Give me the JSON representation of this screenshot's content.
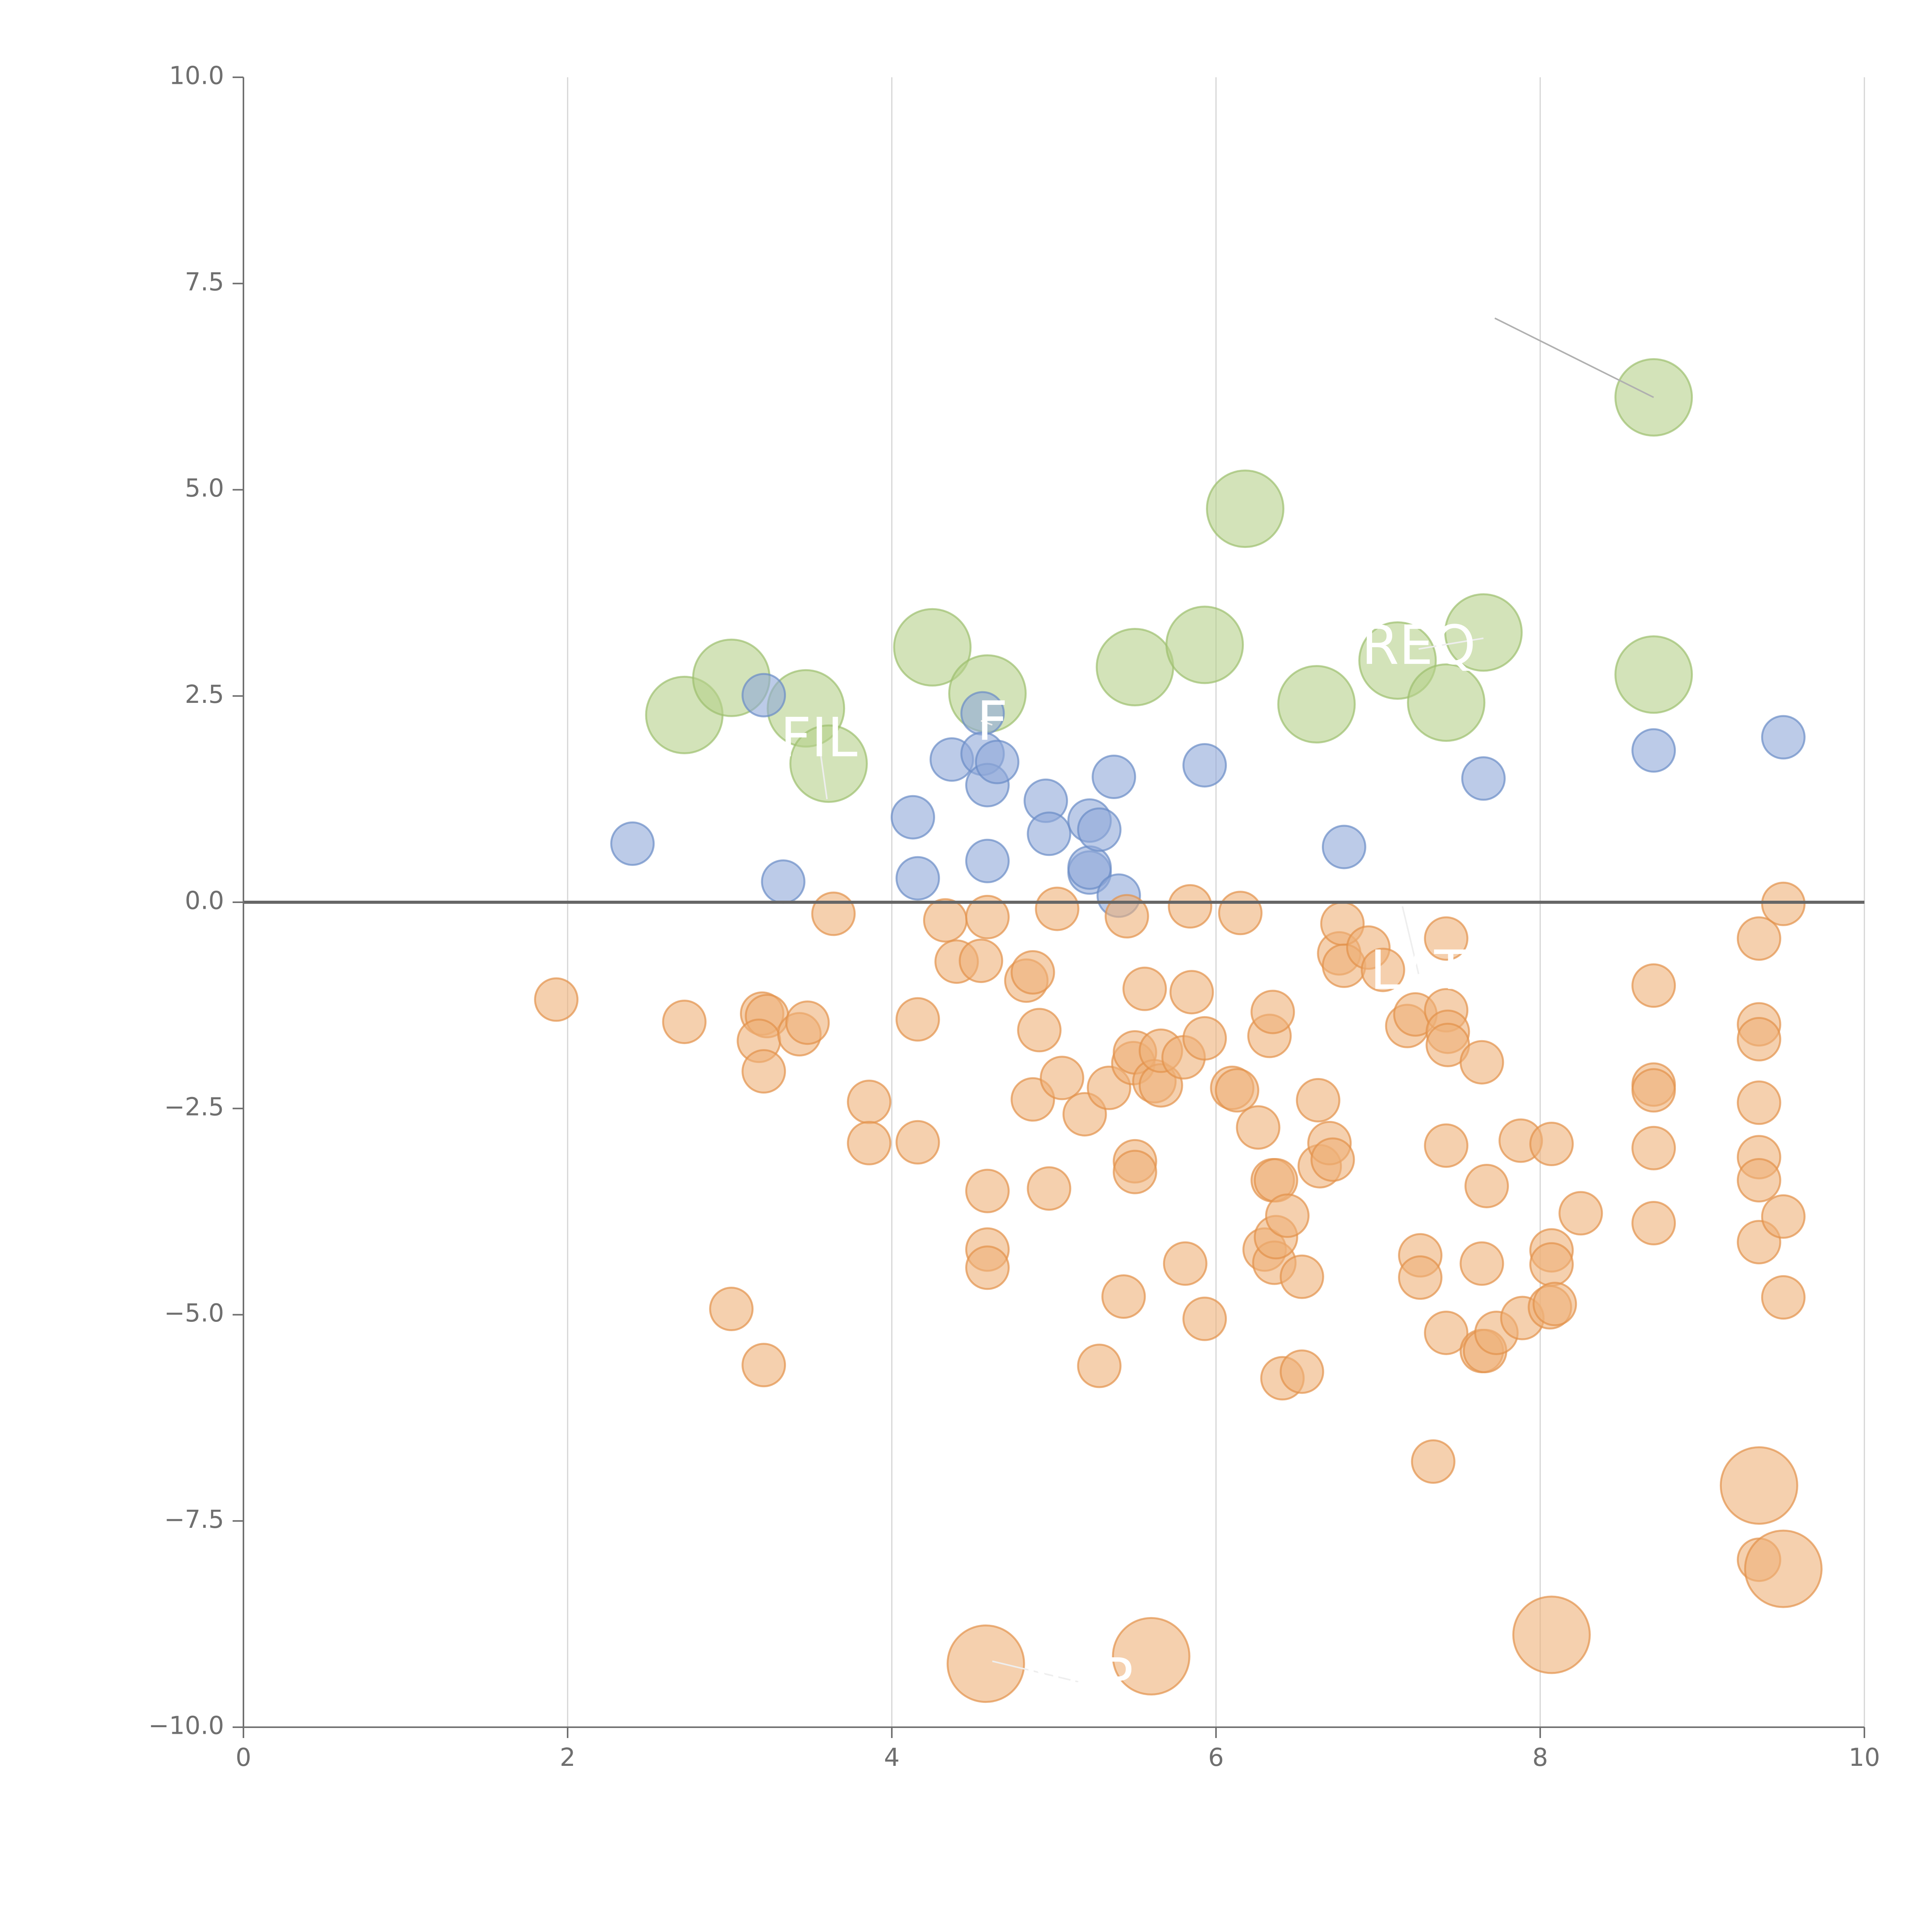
{
  "chart_data": {
    "type": "scatter",
    "title": "",
    "xlabel": "",
    "ylabel": "",
    "xlim": [
      0,
      10
    ],
    "ylim": [
      -10,
      10
    ],
    "x_ticks": [
      0,
      2,
      4,
      6,
      8,
      10
    ],
    "x_tick_labels": [
      "0",
      "2",
      "4",
      "6",
      "8",
      "10"
    ],
    "y_ticks": [
      10,
      7.5,
      5,
      2.5,
      0,
      -2.5,
      -5,
      -7.5,
      -10
    ],
    "y_tick_labels": [
      "10.0",
      "7.5",
      "5.0",
      "2.5",
      "0.0",
      "−2.5",
      "−5.0",
      "−7.5",
      "−10.0"
    ],
    "grid": "vertical",
    "reference_line_y": 0,
    "colors": {
      "green_fill": "#b5d08a",
      "green_edge": "#9dbf6e",
      "blue_fill": "#8fa9d8",
      "blue_edge": "#6a8cc6",
      "orange_fill": "#efb078",
      "orange_edge": "#e3914a",
      "white_text": "#ffffff",
      "white_leader": "#eeeeee",
      "gray_leader": "#b0b0b0"
    },
    "series": [
      {
        "name": "green",
        "color": "#b5d08a",
        "points": [
          [
            2.72,
            2.27,
            1.8
          ],
          [
            3.01,
            2.72,
            1.8
          ],
          [
            3.47,
            2.35,
            1.8
          ],
          [
            3.61,
            1.68,
            1.8
          ],
          [
            4.25,
            3.09,
            1.8
          ],
          [
            4.59,
            2.53,
            1.8
          ],
          [
            5.5,
            2.85,
            1.8
          ],
          [
            5.93,
            3.12,
            1.8
          ],
          [
            6.18,
            4.77,
            1.8
          ],
          [
            6.62,
            2.4,
            1.8
          ],
          [
            7.12,
            2.93,
            1.8
          ],
          [
            7.42,
            2.42,
            1.8
          ],
          [
            7.65,
            3.27,
            1.8
          ],
          [
            8.7,
            6.12,
            1.8
          ],
          [
            8.7,
            2.76,
            1.8
          ]
        ]
      },
      {
        "name": "blue",
        "color": "#8fa9d8",
        "points": [
          [
            2.4,
            0.71,
            1
          ],
          [
            3.21,
            2.51,
            1
          ],
          [
            3.33,
            0.25,
            1
          ],
          [
            4.13,
            1.03,
            1
          ],
          [
            4.16,
            0.29,
            1
          ],
          [
            4.37,
            1.73,
            1
          ],
          [
            4.56,
            2.29,
            1
          ],
          [
            4.56,
            1.8,
            1
          ],
          [
            4.59,
            1.42,
            1
          ],
          [
            4.59,
            0.5,
            1
          ],
          [
            4.65,
            1.7,
            1
          ],
          [
            4.95,
            1.23,
            1
          ],
          [
            4.97,
            0.83,
            1
          ],
          [
            5.22,
            0.36,
            1
          ],
          [
            5.22,
            0.42,
            1
          ],
          [
            5.22,
            0.99,
            1
          ],
          [
            5.28,
            0.88,
            1
          ],
          [
            5.37,
            1.52,
            1
          ],
          [
            5.4,
            0.08,
            1
          ],
          [
            5.93,
            1.66,
            1
          ],
          [
            6.79,
            0.67,
            1
          ],
          [
            7.65,
            1.5,
            1
          ],
          [
            8.7,
            1.84,
            1
          ],
          [
            9.5,
            2.0,
            1
          ]
        ]
      },
      {
        "name": "orange",
        "color": "#efb078",
        "points": [
          [
            1.93,
            -1.18,
            1
          ],
          [
            2.72,
            -1.45,
            1
          ],
          [
            3.01,
            -4.93,
            1
          ],
          [
            3.2,
            -1.35,
            1
          ],
          [
            3.23,
            -1.38,
            1
          ],
          [
            3.18,
            -1.68,
            1
          ],
          [
            3.21,
            -2.05,
            1
          ],
          [
            3.21,
            -5.61,
            1
          ],
          [
            3.43,
            -1.6,
            1
          ],
          [
            3.48,
            -1.46,
            1
          ],
          [
            3.64,
            -0.14,
            1
          ],
          [
            3.86,
            -2.42,
            1
          ],
          [
            3.86,
            -2.92,
            1
          ],
          [
            4.16,
            -1.42,
            1
          ],
          [
            4.16,
            -2.91,
            1
          ],
          [
            4.33,
            -0.22,
            1
          ],
          [
            4.4,
            -0.72,
            1
          ],
          [
            4.55,
            -0.71,
            1
          ],
          [
            4.59,
            -0.18,
            1
          ],
          [
            4.59,
            -3.5,
            1
          ],
          [
            4.59,
            -4.21,
            1
          ],
          [
            4.59,
            -4.43,
            1
          ],
          [
            4.83,
            -0.95,
            1
          ],
          [
            4.87,
            -0.85,
            1
          ],
          [
            4.87,
            -2.39,
            1
          ],
          [
            4.91,
            -1.55,
            1
          ],
          [
            4.97,
            -3.47,
            1
          ],
          [
            5.02,
            -0.08,
            1
          ],
          [
            5.05,
            -2.13,
            1
          ],
          [
            5.19,
            -2.57,
            1
          ],
          [
            5.28,
            -5.62,
            1
          ],
          [
            5.34,
            -2.25,
            1
          ],
          [
            5.43,
            -4.78,
            1
          ],
          [
            5.45,
            -0.17,
            1
          ],
          [
            5.49,
            -1.95,
            1
          ],
          [
            5.5,
            -1.82,
            1
          ],
          [
            5.5,
            -3.14,
            1
          ],
          [
            5.5,
            -3.27,
            1
          ],
          [
            5.56,
            -1.05,
            1
          ],
          [
            5.62,
            -2.17,
            1
          ],
          [
            5.66,
            -2.22,
            1
          ],
          [
            5.66,
            -1.8,
            1
          ],
          [
            5.8,
            -1.88,
            1
          ],
          [
            5.81,
            -4.38,
            1
          ],
          [
            5.84,
            -0.05,
            1
          ],
          [
            5.85,
            -1.09,
            1
          ],
          [
            5.93,
            -1.65,
            1
          ],
          [
            5.93,
            -5.05,
            1
          ],
          [
            6.1,
            -2.25,
            1
          ],
          [
            6.13,
            -2.28,
            1
          ],
          [
            6.15,
            -0.13,
            1
          ],
          [
            6.26,
            -2.73,
            1
          ],
          [
            6.3,
            -4.21,
            1
          ],
          [
            6.33,
            -1.62,
            1
          ],
          [
            6.35,
            -1.33,
            1
          ],
          [
            6.35,
            -3.37,
            1
          ],
          [
            6.37,
            -3.37,
            1
          ],
          [
            6.36,
            -4.37,
            1
          ],
          [
            6.37,
            -4.06,
            1
          ],
          [
            6.41,
            -5.77,
            1
          ],
          [
            6.44,
            -3.8,
            1
          ],
          [
            6.53,
            -5.69,
            1
          ],
          [
            6.53,
            -4.54,
            1
          ],
          [
            6.63,
            -2.4,
            1
          ],
          [
            6.64,
            -3.2,
            1
          ],
          [
            6.7,
            -2.92,
            1
          ],
          [
            6.72,
            -3.12,
            1
          ],
          [
            6.76,
            -0.62,
            1
          ],
          [
            6.78,
            -0.26,
            1
          ],
          [
            6.79,
            -0.77,
            1
          ],
          [
            6.94,
            -0.55,
            1
          ],
          [
            7.03,
            -0.82,
            1
          ],
          [
            7.18,
            -1.5,
            1
          ],
          [
            7.23,
            -1.36,
            1
          ],
          [
            7.26,
            -4.28,
            1
          ],
          [
            7.26,
            -4.55,
            1
          ],
          [
            7.34,
            -6.78,
            1
          ],
          [
            7.42,
            -0.44,
            1
          ],
          [
            7.42,
            -1.31,
            1
          ],
          [
            7.43,
            -1.57,
            1
          ],
          [
            7.43,
            -1.73,
            1
          ],
          [
            7.42,
            -2.95,
            1
          ],
          [
            7.42,
            -5.22,
            1
          ],
          [
            7.64,
            -1.94,
            1
          ],
          [
            7.64,
            -4.38,
            1
          ],
          [
            7.64,
            -5.44,
            1
          ],
          [
            7.66,
            -5.44,
            1
          ],
          [
            7.67,
            -3.44,
            1
          ],
          [
            7.73,
            -5.22,
            1
          ],
          [
            7.88,
            -2.89,
            1
          ],
          [
            7.89,
            -5.04,
            1
          ],
          [
            8.06,
            -4.91,
            1
          ],
          [
            8.07,
            -4.22,
            1
          ],
          [
            8.07,
            -4.39,
            1
          ],
          [
            8.07,
            -2.93,
            1
          ],
          [
            8.09,
            -4.87,
            1
          ],
          [
            8.25,
            -3.77,
            1
          ],
          [
            8.7,
            -1.01,
            1
          ],
          [
            8.7,
            -2.21,
            1
          ],
          [
            8.7,
            -2.28,
            1
          ],
          [
            8.7,
            -2.98,
            1
          ],
          [
            8.7,
            -3.89,
            1
          ],
          [
            9.35,
            -0.44,
            1
          ],
          [
            9.35,
            -1.48,
            1
          ],
          [
            9.35,
            -1.66,
            1
          ],
          [
            9.35,
            -2.43,
            1
          ],
          [
            9.35,
            -3.09,
            1
          ],
          [
            9.35,
            -3.37,
            1
          ],
          [
            9.35,
            -4.12,
            1
          ],
          [
            9.35,
            -7.97,
            1
          ],
          [
            9.5,
            -0.02,
            1
          ],
          [
            9.5,
            -3.81,
            1
          ],
          [
            9.5,
            -4.79,
            1
          ],
          [
            9.35,
            -7.07,
            1.8
          ],
          [
            9.5,
            -8.08,
            1.8
          ],
          [
            8.07,
            -8.88,
            1.8
          ],
          [
            4.58,
            -9.23,
            1.8
          ],
          [
            5.6,
            -9.14,
            1.8
          ]
        ]
      }
    ],
    "annotations": [
      {
        "text": "FIL",
        "x": 3.55,
        "y": 1.95,
        "anchor": [
          3.6,
          1.25
        ]
      },
      {
        "text": "F",
        "x": 4.62,
        "y": 2.15,
        "anchor": [
          4.55,
          2.2
        ]
      },
      {
        "text": "REQ",
        "x": 7.25,
        "y": 3.07,
        "anchor": [
          7.65,
          3.2
        ]
      },
      {
        "text": "LAT",
        "x": 7.25,
        "y": -0.87,
        "anchor": [
          7.15,
          -0.05
        ]
      },
      {
        "text": "NAP",
        "x": 5.15,
        "y": -9.45,
        "anchor": [
          4.62,
          -9.2
        ]
      }
    ]
  }
}
